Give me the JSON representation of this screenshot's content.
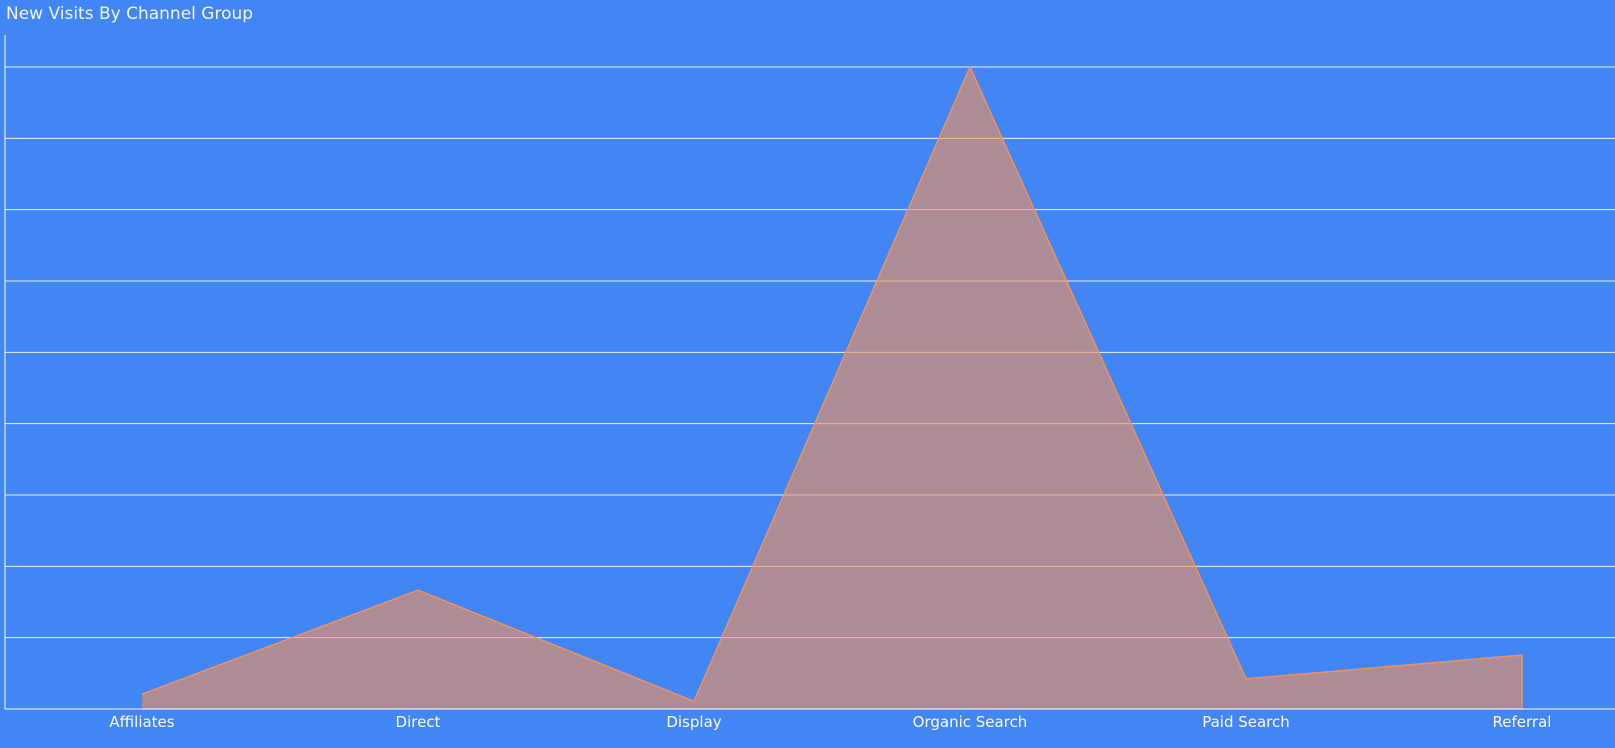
{
  "chart_data": {
    "type": "area",
    "title": "New Visits By Channel Group",
    "xlabel": "",
    "ylabel": "",
    "categories": [
      "Affiliates",
      "Direct",
      "Display",
      "Organic Search",
      "Paid Search",
      "Referral"
    ],
    "values": [
      2.3,
      18.5,
      1.2,
      100,
      4.7,
      8.4
    ],
    "ylim": [
      0,
      100
    ],
    "grid": true,
    "legend": "none",
    "colors": {
      "background": "#4285f4",
      "area": "#f0915a",
      "gridline": "#ffffff",
      "text": "#ffffff"
    }
  }
}
